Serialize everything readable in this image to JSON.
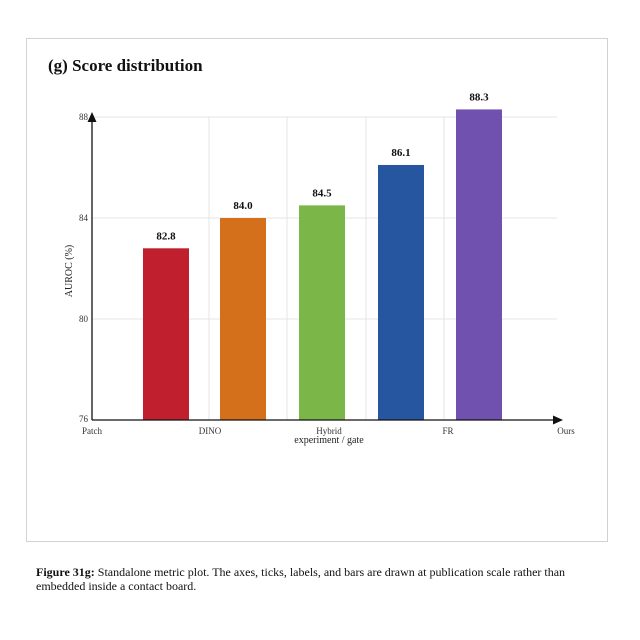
{
  "panel": {
    "title": "(g) Score distribution"
  },
  "chart_data": {
    "type": "bar",
    "title": "(g) Score distribution",
    "xlabel": "experiment / gate",
    "ylabel": "AUROC (%)",
    "ylim": [
      76,
      88
    ],
    "yticks": [
      "76",
      "80",
      "84",
      "88"
    ],
    "x_tick_labels": [
      "Patch",
      "DINO",
      "Hybrid",
      "FR",
      "Ours"
    ],
    "bars": [
      {
        "value": 82.8,
        "label": "82.8",
        "color": "#c0202e"
      },
      {
        "value": 84.0,
        "label": "84.0",
        "color": "#d4701c"
      },
      {
        "value": 84.5,
        "label": "84.5",
        "color": "#7ab648"
      },
      {
        "value": 86.1,
        "label": "86.1",
        "color": "#2656a0"
      },
      {
        "value": 88.3,
        "label": "88.3",
        "color": "#7151b0"
      }
    ],
    "grid": true
  },
  "caption": {
    "lead": "Figure 31g:",
    "text": " Standalone metric plot. The axes, ticks, labels, and bars are drawn at publication scale rather than embedded inside a contact board."
  }
}
